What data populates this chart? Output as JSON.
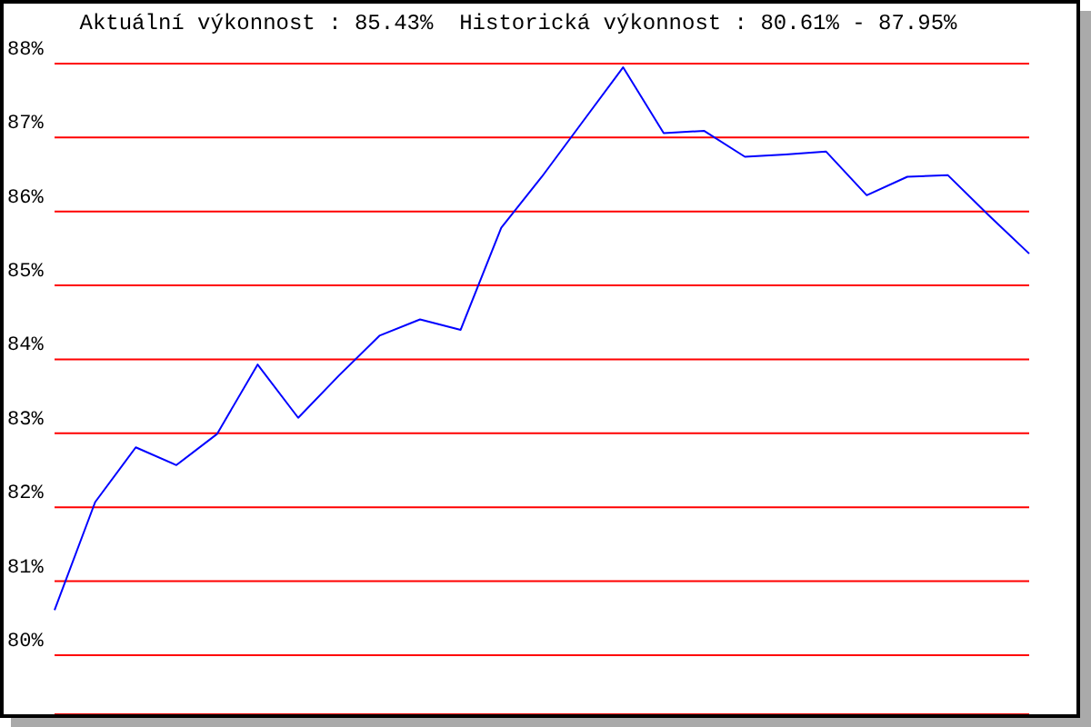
{
  "chart_data": {
    "type": "line",
    "title": "Aktuální výkonnost : 85.43%  Historická výkonnost : 80.61% - 87.95%",
    "categories": [
      null,
      null,
      null,
      null,
      null,
      null,
      null,
      null,
      null,
      null,
      null,
      null,
      null,
      null,
      null,
      null,
      null,
      null,
      null,
      null,
      null,
      null,
      null,
      null,
      null
    ],
    "series": [
      {
        "color": "#0000ff",
        "values": [
          80.61,
          82.07,
          82.81,
          82.57,
          82.99,
          83.93,
          83.21,
          83.78,
          84.32,
          84.54,
          84.4,
          85.78,
          86.47,
          87.21,
          87.95,
          87.06,
          87.09,
          86.74,
          86.77,
          86.81,
          86.22,
          86.47,
          86.49,
          85.95,
          85.43
        ]
      }
    ],
    "ylim": [
      79.2,
      88
    ],
    "yticks": [
      {
        "value": 80,
        "label": "80%"
      },
      {
        "value": 81,
        "label": "81%"
      },
      {
        "value": 82,
        "label": "82%"
      },
      {
        "value": 83,
        "label": "83%"
      },
      {
        "value": 84,
        "label": "84%"
      },
      {
        "value": 85,
        "label": "85%"
      },
      {
        "value": 86,
        "label": "86%"
      },
      {
        "value": 87,
        "label": "87%"
      },
      {
        "value": 88,
        "label": "88%"
      }
    ],
    "grid": "y",
    "tick_labels": "y",
    "legend": false,
    "marker": "none",
    "line_style": "solid"
  }
}
